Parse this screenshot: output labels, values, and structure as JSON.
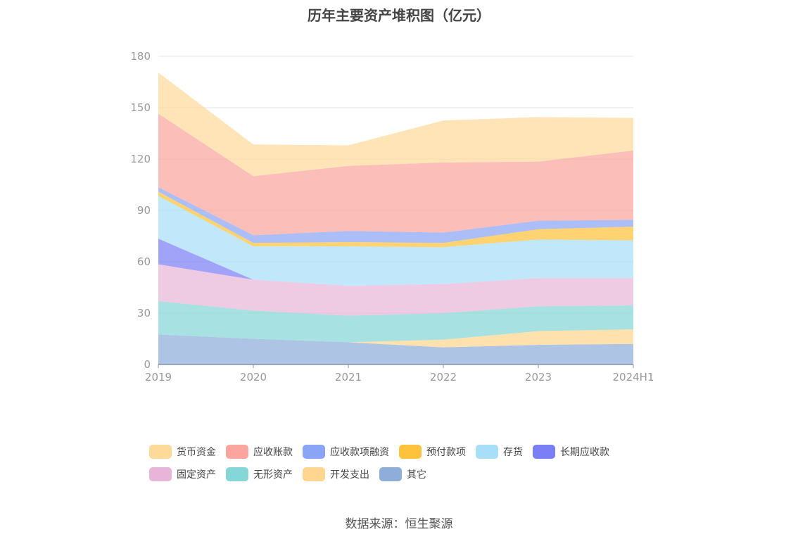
{
  "chart_data": {
    "type": "area",
    "stacked": true,
    "title": "历年主要资产堆积图（亿元）",
    "x": [
      "2019",
      "2020",
      "2021",
      "2022",
      "2023",
      "2024H1"
    ],
    "ylim": [
      0,
      180
    ],
    "yticks": [
      0,
      30,
      60,
      90,
      120,
      150,
      180
    ],
    "grid": true,
    "legend_position": "bottom",
    "series": [
      {
        "name": "其它",
        "color": "#8fadd9",
        "values": [
          17.5,
          15.0,
          13.0,
          10.0,
          11.5,
          12.0
        ]
      },
      {
        "name": "开发支出",
        "color": "#ffd58f",
        "values": [
          0.0,
          0.0,
          0.0,
          4.5,
          8.0,
          8.5
        ]
      },
      {
        "name": "无形资产",
        "color": "#85d6d6",
        "values": [
          19.5,
          16.5,
          15.5,
          15.5,
          14.5,
          14.0
        ]
      },
      {
        "name": "固定资产",
        "color": "#e8b5d8",
        "values": [
          21.5,
          18.0,
          17.5,
          17.0,
          16.5,
          16.0
        ]
      },
      {
        "name": "长期应收款",
        "color": "#7b7ff5",
        "values": [
          15.0,
          0.0,
          0.0,
          0.0,
          0.0,
          0.0
        ]
      },
      {
        "name": "存货",
        "color": "#a8def8",
        "values": [
          25.0,
          19.5,
          23.0,
          21.5,
          22.5,
          22.0
        ]
      },
      {
        "name": "预付款项",
        "color": "#ffc23c",
        "values": [
          2.5,
          2.0,
          2.5,
          2.5,
          6.0,
          8.0
        ]
      },
      {
        "name": "应收款项融资",
        "color": "#8aa5f5",
        "values": [
          2.5,
          4.5,
          6.5,
          6.0,
          5.0,
          4.0
        ]
      },
      {
        "name": "应收账款",
        "color": "#fba59e",
        "values": [
          43.0,
          34.5,
          38.0,
          41.0,
          34.5,
          40.5
        ]
      },
      {
        "name": "货币资金",
        "color": "#fdd99a",
        "values": [
          24.0,
          18.5,
          12.0,
          24.5,
          26.0,
          19.0
        ]
      }
    ],
    "legend_order": [
      "货币资金",
      "应收账款",
      "应收款项融资",
      "预付款项",
      "存货",
      "长期应收款",
      "固定资产",
      "无形资产",
      "开发支出",
      "其它"
    ]
  },
  "footer": {
    "source": "数据来源：恒生聚源"
  }
}
